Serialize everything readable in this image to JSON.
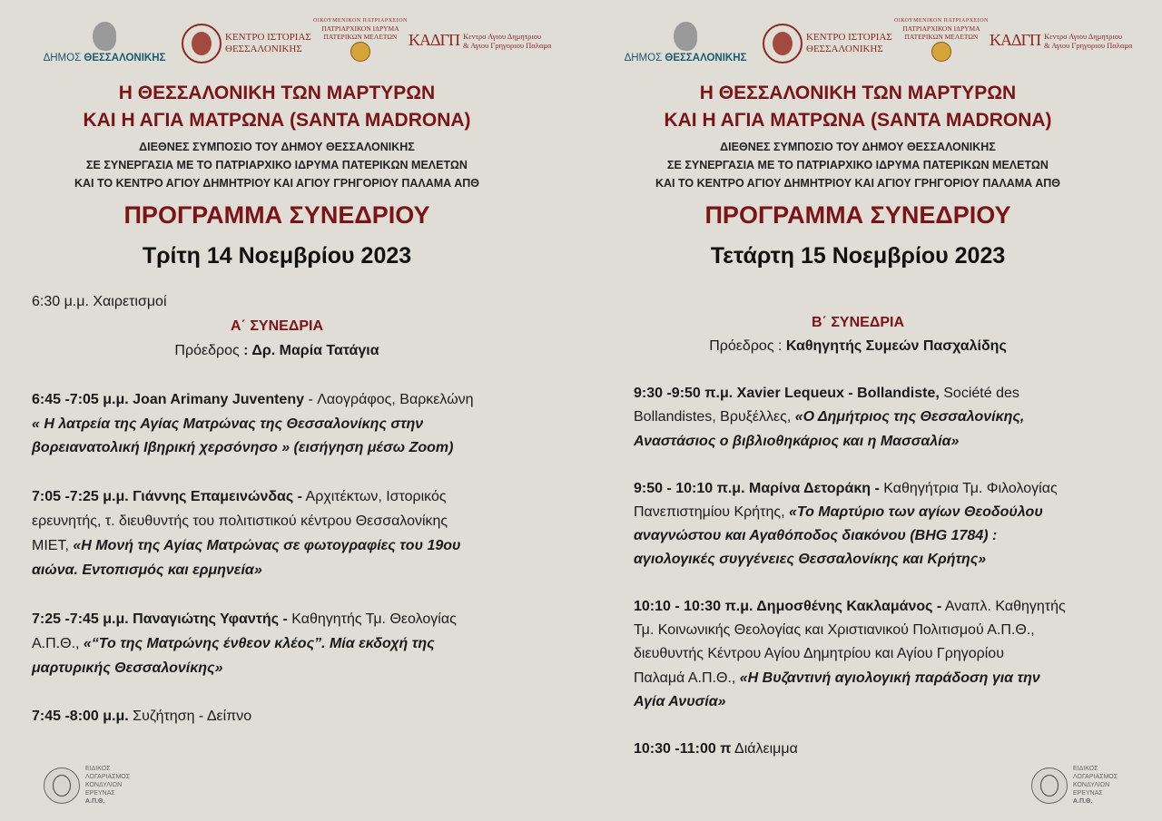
{
  "colors": {
    "background": "#e0ddd7",
    "accent": "#7a1416"
  },
  "logos": {
    "dimos_a": "ΔΗΜΟΣ ",
    "dimos_b": "ΘΕΣΣΑΛΟΝΙΚΗΣ",
    "kentro_1": "ΚΕΝΤΡΟ ΙΣΤΟΡΙΑΣ",
    "kentro_2": "ΘΕΣΣΑΛΟΝΙΚΗΣ",
    "patr_1": "ΟΙΚΟΥΜΕΝΙΚΟΝ ΠΑΤΡΙΑΡΧΕΙΟΝ",
    "patr_2": "ΠΑΤΡΙΑΡΧΙΚΟΝ ΙΔΡΥΜΑ",
    "patr_3": "ΠΑΤΕΡΙΚΩΝ ΜΕΛΕΤΩΝ",
    "patr_seal": "ΠΙΠΜ",
    "kadp_mark": "ΚΑΔΓΠ",
    "kadp_1": "Κεντρο Αγιου Δημητριου",
    "kadp_2": "& Αγιου Γρηγοριου Παλαμα"
  },
  "header": {
    "title_1": "Η ΘΕΣΣΑΛΟΝΙΚΗ ΤΩΝ ΜΑΡΤΥΡΩΝ",
    "title_2": "ΚΑΙ Η ΑΓΙΑ ΜΑΤΡΩΝΑ (SANTA MADRONA)",
    "sub_1": "ΔΙΕΘΝΕΣ ΣΥΜΠΟΣΙΟ ΤΟΥ ΔΗΜΟΥ ΘΕΣΣΑΛΟΝΙΚΗΣ",
    "sub_2": "ΣΕ ΣΥΝΕΡΓΑΣΙΑ ΜΕ ΤΟ ΠΑΤΡΙΑΡΧΙΚΟ ΙΔΡΥΜΑ ΠΑΤΕΡΙΚΩΝ ΜΕΛΕΤΩΝ",
    "sub_3": "ΚΑΙ ΤΟ ΚΕΝΤΡΟ ΑΓΙΟΥ ΔΗΜΗΤΡΙΟΥ ΚΑΙ ΑΓΙΟΥ ΓΡΗΓΟΡΙΟΥ ΠΑΛΑΜΑ ΑΠΘ",
    "program": "ΠΡΟΓΡΑΜΜΑ ΣΥΝΕΔΡΙΟΥ"
  },
  "footer": {
    "l1": "ΕΙΔΙΚΟΣ",
    "l2": "ΛΟΓΑΡΙΑΣΜΟΣ",
    "l3": "ΚΟΝΔΥΛΙΩΝ",
    "l4": "ΕΡΕΥΝΑΣ",
    "l5": "Α.Π.Θ."
  },
  "days": [
    {
      "date": "Τρίτη 14 Νοεμβρίου 2023",
      "lines": [
        [
          {
            "t": "6:30 μ.μ.   Χαιρετισμοί",
            "s": ""
          }
        ],
        [
          {
            "t": "Α΄ ΣΥΝΕΔΡΙΑ",
            "s": "sess",
            "c": true
          }
        ],
        [
          {
            "t": "Πρόεδρος ",
            "s": "",
            "c": true
          },
          {
            "t": ": Δρ. Μαρία Τατάγια",
            "s": "b"
          }
        ],
        [],
        [
          {
            "t": "6:45 -7:05 μ.μ.  Joan Arimany Juventeny ",
            "s": "b"
          },
          {
            "t": " - Λαογράφος, Βαρκελώνη",
            "s": ""
          }
        ],
        [
          {
            "t": "« Η λατρεία της Αγίας Ματρώνας της Θεσσαλονίκης  στην",
            "s": "bi"
          }
        ],
        [
          {
            "t": "βορειανατολική  Ιβηρική χερσόνησο »  (εισήγηση μέσω Zoom)",
            "s": "bi"
          }
        ],
        [],
        [
          {
            "t": " 7:05 -7:25 μ.μ.  Γιάννης  Επαμεινώνδας  -",
            "s": "b"
          },
          {
            "t": " Αρχιτέκτων, Ιστορικός",
            "s": ""
          }
        ],
        [
          {
            "t": "ερευνητής, τ. διευθυντής του πολιτιστικού κέντρου Θεσσαλονίκης",
            "s": ""
          }
        ],
        [
          {
            "t": "ΜΙΕΤ, ",
            "s": ""
          },
          {
            "t": "«Η  Μονή της  Αγίας  Ματρώνας  σε φωτογραφίες του 19ου",
            "s": "bi"
          }
        ],
        [
          {
            "t": "αιώνα. Εντοπισμός και ερμηνεία»",
            "s": "bi"
          }
        ],
        [],
        [
          {
            "t": " 7:25 -7:45 μ.μ.  Παναγιώτης  Υφαντής -",
            "s": "b"
          },
          {
            "t": " Καθηγητής Τμ. Θεολογίας",
            "s": ""
          }
        ],
        [
          {
            "t": "Α.Π.Θ.,  ",
            "s": ""
          },
          {
            "t": "«“Το της Ματρώνης ένθεον κλέος”. Μία εκδοχή της",
            "s": "bi"
          }
        ],
        [
          {
            "t": "μαρτυρικής Θεσσαλονίκης»",
            "s": "bi"
          }
        ],
        [],
        [
          {
            "t": "7:45 -8:00 μ.μ.",
            "s": "b"
          },
          {
            "t": "  Συζήτηση - Δείπνο",
            "s": ""
          }
        ]
      ]
    },
    {
      "date": "Τετάρτη 15 Νοεμβρίου 2023",
      "lines": [
        [
          {
            "t": "Β΄ ΣΥΝΕΔΡΙΑ",
            "s": "sess",
            "c": true
          }
        ],
        [
          {
            "t": "Πρόεδρος : ",
            "s": "",
            "c": true
          },
          {
            "t": "Καθηγητής Συμεών Πασχαλίδης",
            "s": "b"
          }
        ],
        [],
        [
          {
            "t": "9:30 -9:50 π.μ.  Xavier Lequeux - Bollandiste,",
            "s": "b"
          },
          {
            "t": " Société des",
            "s": ""
          }
        ],
        [
          {
            "t": "Bollandistes, Βρυξέλλες, ",
            "s": ""
          },
          {
            "t": "«Ο Δημήτριος της Θεσσαλονίκης,",
            "s": "bi"
          }
        ],
        [
          {
            "t": "Αναστάσιος ο βιβλιοθηκάριος και η Μασσαλία»",
            "s": "bi"
          }
        ],
        [],
        [
          {
            "t": "9:50 - 10:10 π.μ. Μαρίνα Δετοράκη -",
            "s": "b"
          },
          {
            "t": " Καθηγήτρια Τμ. Φιλολογίας",
            "s": ""
          }
        ],
        [
          {
            "t": "Πανεπιστημίου Κρήτης,  ",
            "s": ""
          },
          {
            "t": "«Το Μαρτύριο των αγίων Θεοδούλου",
            "s": "bi"
          }
        ],
        [
          {
            "t": "αναγνώστου και Αγαθόποδος διακόνου (BHG 1784) :",
            "s": "bi"
          }
        ],
        [
          {
            "t": "αγιολογικές συγγένειες Θεσσαλονίκης και Κρήτης»",
            "s": "bi"
          }
        ],
        [],
        [
          {
            "t": "10:10 - 10:30 π.μ.  Δημοσθένης Κακλαμάνος -",
            "s": "b"
          },
          {
            "t": " Αναπλ. Καθηγητής",
            "s": ""
          }
        ],
        [
          {
            "t": "Τμ. Κοινωνικής Θεολογίας και Χριστιανικού Πολιτισμού Α.Π.Θ.,",
            "s": ""
          }
        ],
        [
          {
            "t": "διευθυντής Κέντρου Αγίου Δημητρίου και Αγίου Γρηγορίου",
            "s": ""
          }
        ],
        [
          {
            "t": "Παλαμά Α.Π.Θ., ",
            "s": ""
          },
          {
            "t": "«Η Βυζαντινή αγιολογική παράδοση για την",
            "s": "bi"
          }
        ],
        [
          {
            "t": "Αγία Ανυσία»",
            "s": "bi"
          }
        ],
        [],
        [
          {
            "t": "10:30 -11:00 π",
            "s": "b"
          },
          {
            "t": "  Διάλειμμα",
            "s": ""
          }
        ]
      ]
    }
  ]
}
